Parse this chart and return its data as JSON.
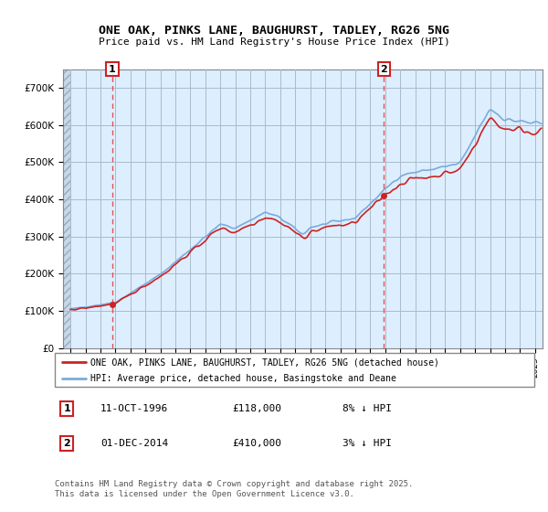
{
  "title_line1": "ONE OAK, PINKS LANE, BAUGHURST, TADLEY, RG26 5NG",
  "title_line2": "Price paid vs. HM Land Registry's House Price Index (HPI)",
  "ylim": [
    0,
    750000
  ],
  "yticks": [
    0,
    100000,
    200000,
    300000,
    400000,
    500000,
    600000,
    700000
  ],
  "ytick_labels": [
    "£0",
    "£100K",
    "£200K",
    "£300K",
    "£400K",
    "£500K",
    "£600K",
    "£700K"
  ],
  "hpi_color": "#7aabdb",
  "price_color": "#cc2222",
  "marker_color": "#cc2222",
  "dashed_color": "#dd4444",
  "annotation_box_color": "#cc2222",
  "chart_bg_color": "#ddeeff",
  "hatch_color": "#c8d8e8",
  "grid_color": "#aabbcc",
  "legend_label_price": "ONE OAK, PINKS LANE, BAUGHURST, TADLEY, RG26 5NG (detached house)",
  "legend_label_hpi": "HPI: Average price, detached house, Basingstoke and Deane",
  "annotation1_date": "11-OCT-1996",
  "annotation1_price": "£118,000",
  "annotation1_hpi": "8% ↓ HPI",
  "annotation2_date": "01-DEC-2014",
  "annotation2_price": "£410,000",
  "annotation2_hpi": "3% ↓ HPI",
  "footer": "Contains HM Land Registry data © Crown copyright and database right 2025.\nThis data is licensed under the Open Government Licence v3.0.",
  "sale1_x": 1996.79,
  "sale1_y": 118000,
  "sale2_x": 2014.92,
  "sale2_y": 410000,
  "xmin": 1993.5,
  "xmax": 2025.5
}
